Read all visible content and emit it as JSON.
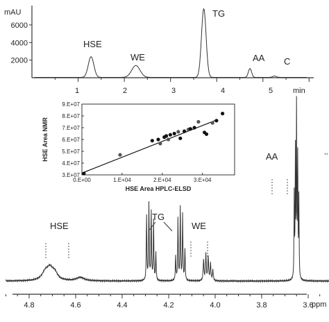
{
  "chart_data": [
    {
      "type": "line",
      "xunit": "min",
      "yunit": "mAU",
      "xlim": [
        0,
        6.1
      ],
      "ylim": [
        0,
        8200
      ],
      "x_ticks": [
        "1",
        "2",
        "3",
        "4",
        "5",
        "min"
      ],
      "y_ticks": [
        "2000",
        "4000",
        "6000",
        "mAU"
      ],
      "y_tick_values": [
        2000,
        4000,
        6000
      ],
      "peaks": [
        {
          "label": "HSE",
          "x": 1.28,
          "y": 2350
        },
        {
          "label": "WE",
          "x": 2.25,
          "y": 1350
        },
        {
          "label": "TG",
          "x": 3.72,
          "y": 7800
        },
        {
          "label": "AA",
          "x": 4.72,
          "y": 1000
        },
        {
          "label": "C",
          "x": 5.25,
          "y": 150
        }
      ]
    },
    {
      "type": "scatter",
      "xlabel": "HSE Area HPLC-ELSD",
      "ylabel": "HSE Area NMR",
      "xlim": [
        0,
        38000
      ],
      "ylim": [
        30000000,
        90000000
      ],
      "x_ticks": [
        "0.E+00",
        "1.E+04",
        "2.E+04",
        "3.E+04"
      ],
      "y_ticks": [
        "3.E+07",
        "4.E+07",
        "5.E+07",
        "6.E+07",
        "7.E+07",
        "8.E+07",
        "9.E+07"
      ],
      "points": [
        {
          "x": 500,
          "y": 31200000
        },
        {
          "x": 9500,
          "y": 47000000
        },
        {
          "x": 17500,
          "y": 59000000
        },
        {
          "x": 19000,
          "y": 60000000
        },
        {
          "x": 19500,
          "y": 56500000
        },
        {
          "x": 20500,
          "y": 62000000
        },
        {
          "x": 21000,
          "y": 63000000
        },
        {
          "x": 21500,
          "y": 60000000
        },
        {
          "x": 22000,
          "y": 64000000
        },
        {
          "x": 23000,
          "y": 65000000
        },
        {
          "x": 24000,
          "y": 66500000
        },
        {
          "x": 24500,
          "y": 61000000
        },
        {
          "x": 25500,
          "y": 67000000
        },
        {
          "x": 26500,
          "y": 68500000
        },
        {
          "x": 27000,
          "y": 69000000
        },
        {
          "x": 28000,
          "y": 70000000
        },
        {
          "x": 29000,
          "y": 75000000
        },
        {
          "x": 30500,
          "y": 66000000
        },
        {
          "x": 31000,
          "y": 64500000
        },
        {
          "x": 32500,
          "y": 74000000
        },
        {
          "x": 33500,
          "y": 76000000
        },
        {
          "x": 35000,
          "y": 82000000
        }
      ],
      "trendline": [
        [
          0,
          31500000
        ],
        [
          33500,
          76500000
        ]
      ]
    },
    {
      "type": "line",
      "xunit": "ppm",
      "xlim": [
        4.9,
        3.5
      ],
      "x_ticks": [
        "4.8",
        "4.6",
        "4.4",
        "4.2",
        "4.0",
        "3.8",
        "3.6"
      ],
      "x_tick_values": [
        4.8,
        4.6,
        4.4,
        4.2,
        4.0,
        3.8,
        3.6
      ],
      "labels": [
        "HSE",
        "TG",
        "WE",
        "AA"
      ]
    }
  ]
}
